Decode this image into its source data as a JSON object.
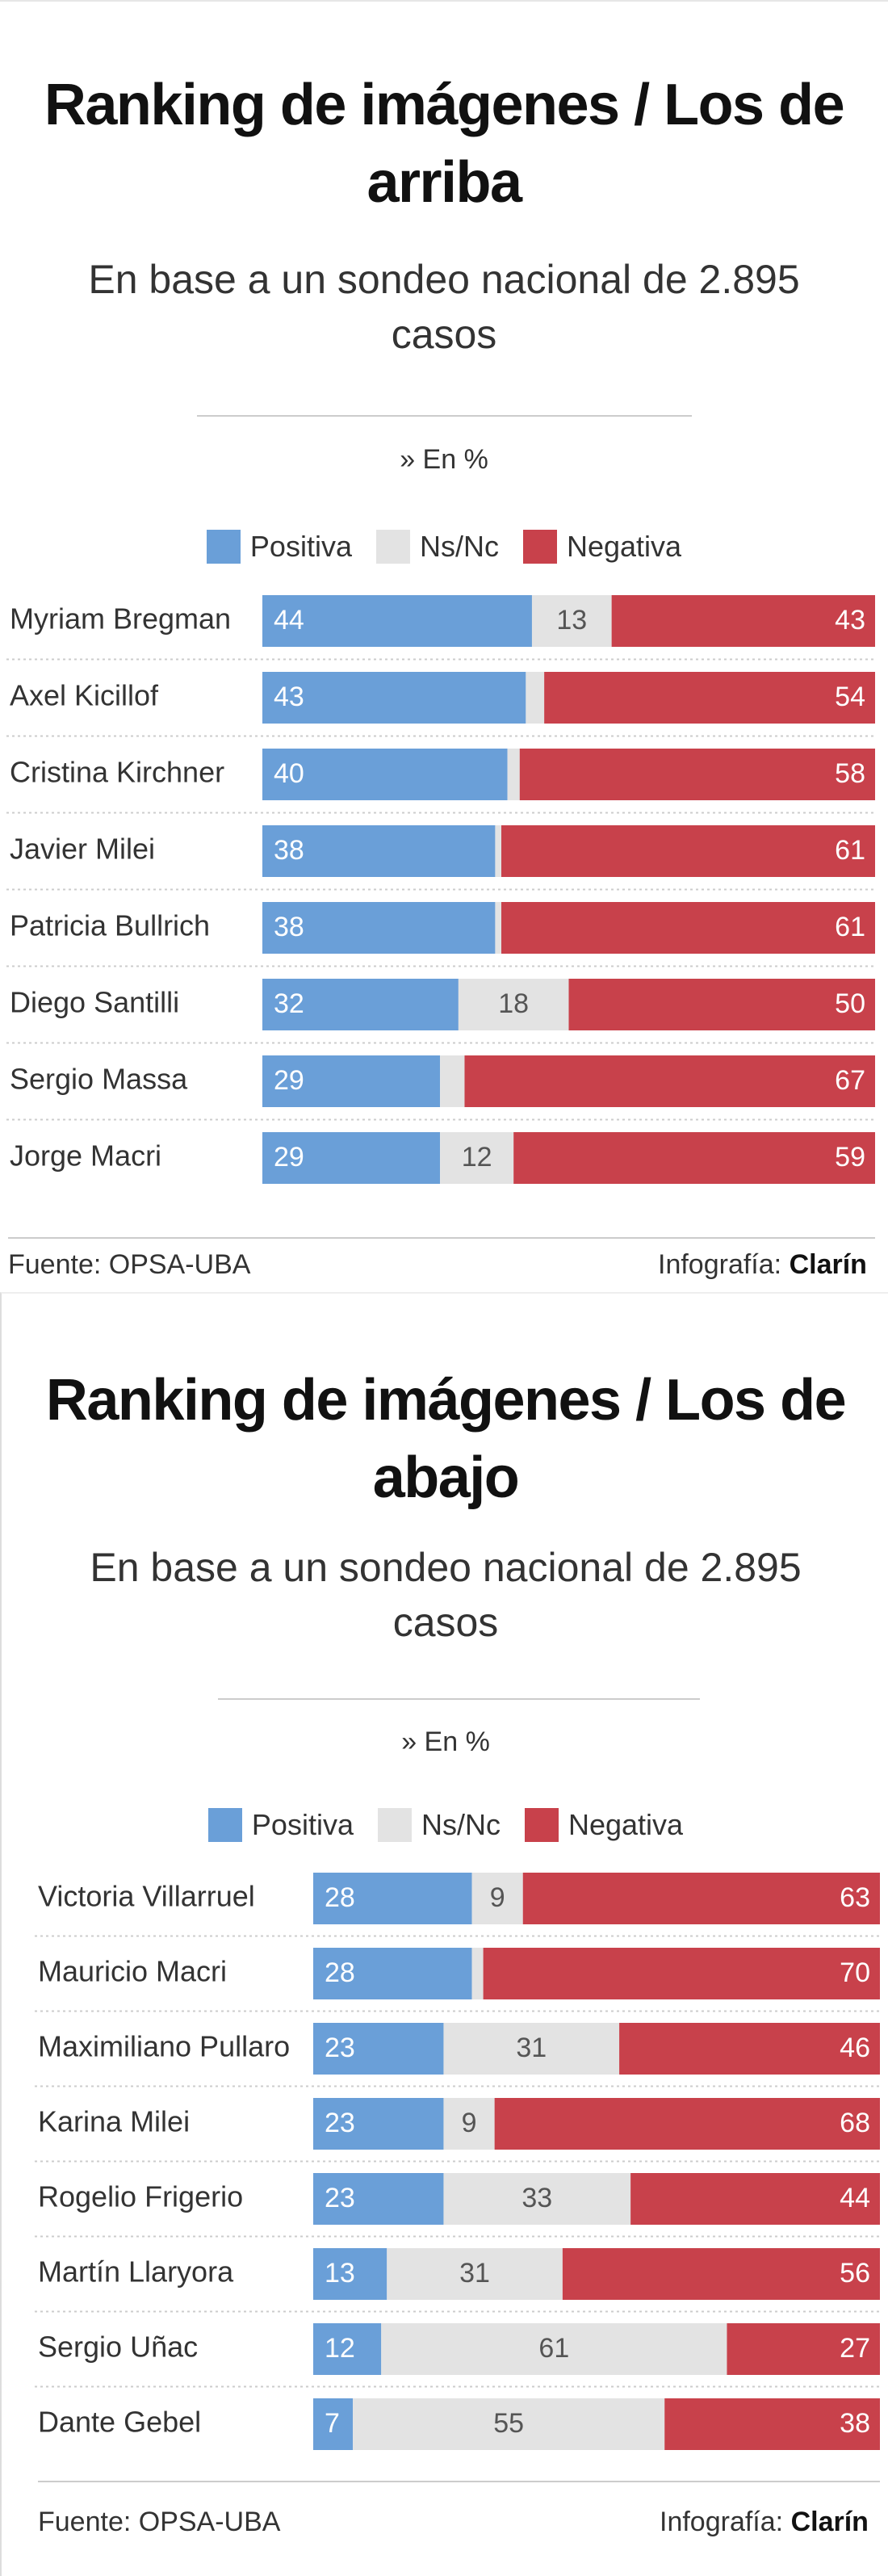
{
  "chart_data": [
    {
      "type": "bar",
      "orientation": "horizontal",
      "stacked": true,
      "title": "Ranking de imágenes / Los de arriba",
      "subtitle": "En base a un sondeo nacional de 2.895 casos",
      "unit_label": "» En %",
      "categories": [
        "Myriam Bregman",
        "Axel Kicillof",
        "Cristina Kirchner",
        "Javier Milei",
        "Patricia Bullrich",
        "Diego Santilli",
        "Sergio Massa",
        "Jorge Macri"
      ],
      "series": [
        {
          "name": "Positiva",
          "color": "#6a9fd8",
          "values": [
            44,
            43,
            40,
            38,
            38,
            32,
            29,
            29
          ]
        },
        {
          "name": "Ns/Nc",
          "color": "#e3e3e3",
          "values": [
            13,
            3,
            2,
            1,
            1,
            18,
            4,
            12
          ]
        },
        {
          "name": "Negativa",
          "color": "#c8414b",
          "values": [
            43,
            54,
            58,
            61,
            61,
            50,
            67,
            59
          ]
        }
      ],
      "xlim": [
        0,
        100
      ],
      "source": "Fuente: OPSA-UBA",
      "credit": "Infografía:",
      "brand": "Clarín"
    },
    {
      "type": "bar",
      "orientation": "horizontal",
      "stacked": true,
      "title": "Ranking de imágenes / Los de abajo",
      "subtitle": "En base a un sondeo nacional de 2.895 casos",
      "unit_label": "» En %",
      "categories": [
        "Victoria Villarruel",
        "Mauricio Macri",
        "Maximiliano Pullaro",
        "Karina Milei",
        "Rogelio Frigerio",
        "Martín Llaryora",
        "Sergio Uñac",
        "Dante Gebel"
      ],
      "series": [
        {
          "name": "Positiva",
          "color": "#6a9fd8",
          "values": [
            28,
            28,
            23,
            23,
            23,
            13,
            12,
            7
          ]
        },
        {
          "name": "Ns/Nc",
          "color": "#e3e3e3",
          "values": [
            9,
            2,
            31,
            9,
            33,
            31,
            61,
            55
          ]
        },
        {
          "name": "Negativa",
          "color": "#c8414b",
          "values": [
            63,
            70,
            46,
            68,
            44,
            56,
            27,
            38
          ]
        }
      ],
      "xlim": [
        0,
        100
      ],
      "source": "Fuente: OPSA-UBA",
      "credit": "Infografía:",
      "brand": "Clarín"
    }
  ]
}
